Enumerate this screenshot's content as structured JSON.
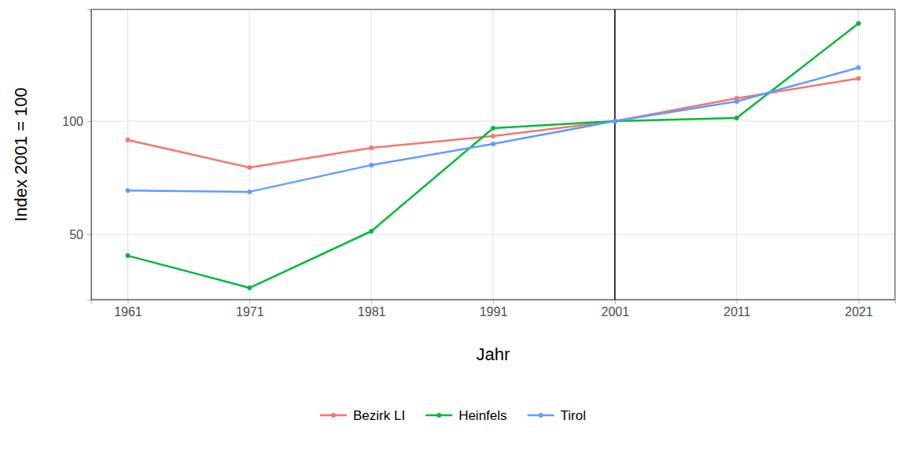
{
  "chart_data": {
    "type": "line",
    "x_label": "Jahr",
    "y_label": "Index 2001 = 100",
    "x": [
      1961,
      1971,
      1981,
      1991,
      2001,
      2011,
      2021
    ],
    "series": [
      {
        "name": "Bezirk LI",
        "color": "#F8766D",
        "marker": "circle",
        "values": [
          91.7,
          79.5,
          88.2,
          93.4,
          100,
          110.1,
          118.8
        ]
      },
      {
        "name": "Heinfels",
        "color": "#00BA38",
        "marker": "circle",
        "values": [
          40.6,
          26.4,
          51.4,
          96.9,
          100,
          101.4,
          143.1
        ]
      },
      {
        "name": "Tirol",
        "color": "#619CFF",
        "marker": "circle",
        "values": [
          69.4,
          68.8,
          80.6,
          89.9,
          100,
          108.7,
          123.6
        ]
      }
    ],
    "vline": 2001,
    "xlim": [
      1958,
      2024
    ],
    "xticks": [
      1961,
      1971,
      1981,
      1991,
      2001,
      2011,
      2021
    ],
    "ylim": [
      21.2,
      149.3
    ],
    "yticks": [
      50,
      100
    ],
    "grid": true,
    "legend": "bottom"
  }
}
